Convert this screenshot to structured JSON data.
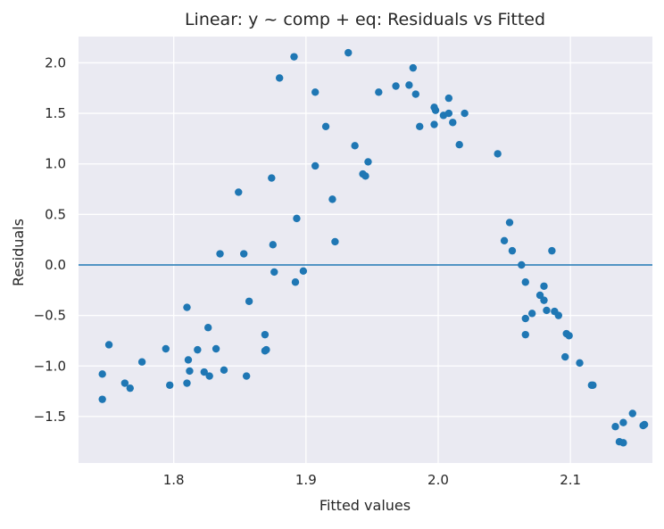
{
  "chart_data": {
    "type": "scatter",
    "title": "Linear: y ~ comp + eq: Residuals vs Fitted",
    "xlabel": "Fitted values",
    "ylabel": "Residuals",
    "xlim": [
      1.728,
      2.162
    ],
    "ylim": [
      -1.96,
      2.26
    ],
    "xticks": [
      1.8,
      1.9,
      2.0,
      2.1
    ],
    "xtick_labels": [
      "1.8",
      "1.9",
      "2.0",
      "2.1"
    ],
    "yticks": [
      2.0,
      1.5,
      1.0,
      0.5,
      0.0,
      -0.5,
      -1.0,
      -1.5
    ],
    "ytick_labels": [
      "2.0",
      "1.5",
      "1.0",
      "0.5",
      "0.0",
      "−0.5",
      "−1.0",
      "−1.5"
    ],
    "grid": true,
    "reference_line": {
      "y": 0.0,
      "color": "#1f77b4"
    },
    "colors": {
      "points": "#1f77b4",
      "plot_bg": "#eaeaf2",
      "grid": "#ffffff"
    },
    "points": [
      {
        "x": 1.746,
        "y": -1.08
      },
      {
        "x": 1.746,
        "y": -1.33
      },
      {
        "x": 1.751,
        "y": -0.79
      },
      {
        "x": 1.763,
        "y": -1.17
      },
      {
        "x": 1.767,
        "y": -1.22
      },
      {
        "x": 1.776,
        "y": -0.96
      },
      {
        "x": 1.794,
        "y": -0.83
      },
      {
        "x": 1.797,
        "y": -1.19
      },
      {
        "x": 1.81,
        "y": -0.42
      },
      {
        "x": 1.81,
        "y": -1.17
      },
      {
        "x": 1.811,
        "y": -0.94
      },
      {
        "x": 1.812,
        "y": -1.05
      },
      {
        "x": 1.818,
        "y": -0.84
      },
      {
        "x": 1.823,
        "y": -1.06
      },
      {
        "x": 1.826,
        "y": -0.62
      },
      {
        "x": 1.827,
        "y": -1.1
      },
      {
        "x": 1.832,
        "y": -0.83
      },
      {
        "x": 1.835,
        "y": 0.11
      },
      {
        "x": 1.838,
        "y": -1.04
      },
      {
        "x": 1.849,
        "y": 0.72
      },
      {
        "x": 1.853,
        "y": 0.11
      },
      {
        "x": 1.855,
        "y": -1.1
      },
      {
        "x": 1.857,
        "y": -0.36
      },
      {
        "x": 1.869,
        "y": -0.69
      },
      {
        "x": 1.869,
        "y": -0.85
      },
      {
        "x": 1.87,
        "y": -0.84
      },
      {
        "x": 1.874,
        "y": 0.86
      },
      {
        "x": 1.875,
        "y": 0.2
      },
      {
        "x": 1.876,
        "y": -0.07
      },
      {
        "x": 1.88,
        "y": 1.85
      },
      {
        "x": 1.891,
        "y": 2.06
      },
      {
        "x": 1.892,
        "y": -0.17
      },
      {
        "x": 1.893,
        "y": 0.46
      },
      {
        "x": 1.898,
        "y": -0.06
      },
      {
        "x": 1.907,
        "y": 1.71
      },
      {
        "x": 1.907,
        "y": 0.98
      },
      {
        "x": 1.915,
        "y": 1.37
      },
      {
        "x": 1.92,
        "y": 0.65
      },
      {
        "x": 1.922,
        "y": 0.23
      },
      {
        "x": 1.932,
        "y": 2.1
      },
      {
        "x": 1.937,
        "y": 1.18
      },
      {
        "x": 1.943,
        "y": 0.9
      },
      {
        "x": 1.945,
        "y": 0.88
      },
      {
        "x": 1.947,
        "y": 1.02
      },
      {
        "x": 1.955,
        "y": 1.71
      },
      {
        "x": 1.968,
        "y": 1.77
      },
      {
        "x": 1.978,
        "y": 1.78
      },
      {
        "x": 1.981,
        "y": 1.95
      },
      {
        "x": 1.983,
        "y": 1.69
      },
      {
        "x": 1.986,
        "y": 1.37
      },
      {
        "x": 1.997,
        "y": 1.56
      },
      {
        "x": 1.998,
        "y": 1.53
      },
      {
        "x": 1.997,
        "y": 1.39
      },
      {
        "x": 2.004,
        "y": 1.48
      },
      {
        "x": 2.008,
        "y": 1.5
      },
      {
        "x": 2.008,
        "y": 1.65
      },
      {
        "x": 2.011,
        "y": 1.41
      },
      {
        "x": 2.016,
        "y": 1.19
      },
      {
        "x": 2.02,
        "y": 1.5
      },
      {
        "x": 2.045,
        "y": 1.1
      },
      {
        "x": 2.05,
        "y": 0.24
      },
      {
        "x": 2.054,
        "y": 0.42
      },
      {
        "x": 2.056,
        "y": 0.14
      },
      {
        "x": 2.063,
        "y": 0.0
      },
      {
        "x": 2.066,
        "y": -0.17
      },
      {
        "x": 2.066,
        "y": -0.53
      },
      {
        "x": 2.066,
        "y": -0.69
      },
      {
        "x": 2.071,
        "y": -0.48
      },
      {
        "x": 2.077,
        "y": -0.3
      },
      {
        "x": 2.08,
        "y": -0.21
      },
      {
        "x": 2.08,
        "y": -0.35
      },
      {
        "x": 2.082,
        "y": -0.45
      },
      {
        "x": 2.086,
        "y": 0.14
      },
      {
        "x": 2.088,
        "y": -0.46
      },
      {
        "x": 2.091,
        "y": -0.5
      },
      {
        "x": 2.096,
        "y": -0.91
      },
      {
        "x": 2.097,
        "y": -0.68
      },
      {
        "x": 2.099,
        "y": -0.7
      },
      {
        "x": 2.107,
        "y": -0.97
      },
      {
        "x": 2.116,
        "y": -1.19
      },
      {
        "x": 2.117,
        "y": -1.19
      },
      {
        "x": 2.134,
        "y": -1.6
      },
      {
        "x": 2.137,
        "y": -1.75
      },
      {
        "x": 2.14,
        "y": -1.76
      },
      {
        "x": 2.14,
        "y": -1.56
      },
      {
        "x": 2.147,
        "y": -1.47
      },
      {
        "x": 2.155,
        "y": -1.59
      },
      {
        "x": 2.156,
        "y": -1.58
      }
    ]
  }
}
